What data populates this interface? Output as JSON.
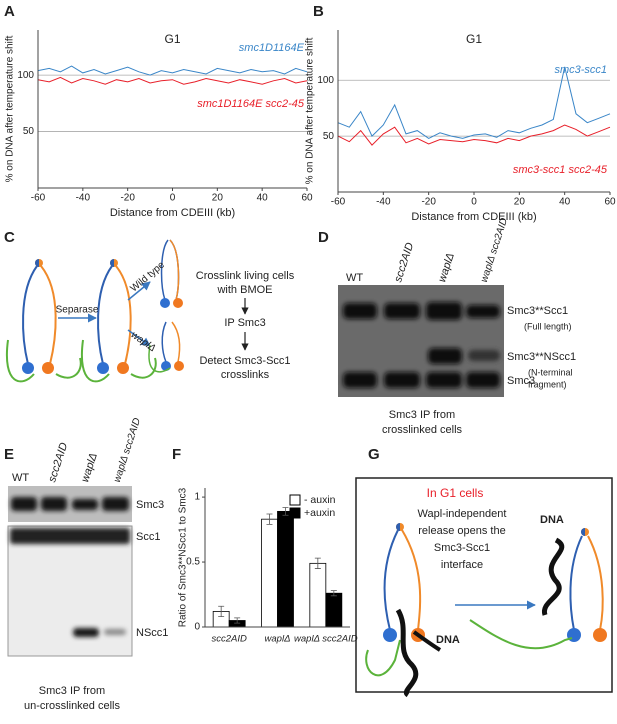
{
  "panel_labels": [
    "A",
    "B",
    "C",
    "D",
    "E",
    "F",
    "G"
  ],
  "chart_data": [
    {
      "type": "line",
      "title": "G1",
      "xlabel": "Distance from CDEIII (kb)",
      "ylabel": "% on DNA after temperature shift",
      "x": [
        -60,
        -55,
        -50,
        -45,
        -40,
        -35,
        -30,
        -25,
        -20,
        -15,
        -10,
        -5,
        0,
        5,
        10,
        15,
        20,
        25,
        30,
        35,
        40,
        45,
        50,
        55,
        60
      ],
      "series": [
        {
          "name": "smc1D1164E",
          "color": "#3a86c8",
          "values": [
            104,
            106,
            103,
            108,
            102,
            105,
            101,
            104,
            107,
            103,
            100,
            104,
            102,
            105,
            103,
            101,
            106,
            104,
            102,
            105,
            103,
            104,
            101,
            106,
            103
          ]
        },
        {
          "name": "smc1D1164E scc2-45",
          "color": "#e8202a",
          "values": [
            96,
            94,
            98,
            93,
            97,
            95,
            92,
            96,
            94,
            97,
            93,
            95,
            96,
            92,
            94,
            97,
            95,
            93,
            96,
            94,
            92,
            95,
            97,
            93,
            95
          ]
        }
      ],
      "xlim": [
        -60,
        60
      ],
      "xticks": [
        -60,
        -40,
        -20,
        0,
        20,
        40,
        60
      ],
      "ylim": [
        0,
        140
      ],
      "yticks": [
        50,
        100
      ],
      "grid": true
    },
    {
      "type": "line",
      "title": "G1",
      "xlabel": "Distance from CDEIII (kb)",
      "ylabel": "% on DNA after temperature shift",
      "x": [
        -60,
        -55,
        -50,
        -45,
        -40,
        -35,
        -30,
        -25,
        -20,
        -15,
        -10,
        -5,
        0,
        5,
        10,
        15,
        20,
        25,
        30,
        35,
        40,
        45,
        50,
        55,
        60
      ],
      "series": [
        {
          "name": "smc3-scc1",
          "color": "#3a86c8",
          "values": [
            62,
            58,
            72,
            50,
            60,
            78,
            52,
            55,
            48,
            53,
            50,
            48,
            51,
            52,
            49,
            55,
            53,
            57,
            60,
            65,
            112,
            70,
            62,
            66,
            70
          ]
        },
        {
          "name": "smc3-scc1 scc2-45",
          "color": "#e8202a",
          "values": [
            50,
            45,
            55,
            42,
            52,
            58,
            44,
            48,
            43,
            47,
            46,
            45,
            47,
            46,
            44,
            48,
            46,
            50,
            52,
            55,
            60,
            56,
            50,
            54,
            58
          ]
        }
      ],
      "xlim": [
        -60,
        60
      ],
      "xticks": [
        -60,
        -40,
        -20,
        0,
        20,
        40,
        60
      ],
      "ylim": [
        0,
        145
      ],
      "yticks": [
        50,
        100
      ],
      "grid": true
    },
    {
      "type": "bar",
      "ylabel": "Ratio of Smc3**NScc1 to Smc3",
      "categories": [
        "scc2AID",
        "waplΔ",
        "waplΔ scc2AID"
      ],
      "series": [
        {
          "name": "- auxin",
          "color": "#ffffff",
          "values": [
            0.12,
            0.83,
            0.49
          ],
          "errors": [
            0.04,
            0.04,
            0.04
          ]
        },
        {
          "name": "+auxin",
          "color": "#000000",
          "values": [
            0.05,
            0.89,
            0.26
          ],
          "errors": [
            0.02,
            0.03,
            0.02
          ]
        }
      ],
      "ylim": [
        0,
        1.07
      ],
      "yticks": [
        0,
        0.5,
        1
      ]
    }
  ],
  "panel_c": {
    "separase": "Separase",
    "wild_type": "Wild type",
    "wapl": "waplΔ",
    "crosslink": [
      "Crosslink living cells",
      "with BMOE"
    ],
    "ip": "IP Smc3",
    "detect": [
      "Detect Smc3-Scc1",
      "crosslinks"
    ]
  },
  "panel_d": {
    "lanes": [
      "WT",
      "scc2AID",
      "waplΔ",
      "waplΔ scc2AID"
    ],
    "bands": [
      "Smc3**Scc1",
      "(Full length)",
      "Smc3**NScc1",
      "(N-terminal",
      "fragment)",
      "Smc3"
    ],
    "caption": [
      "Smc3 IP from",
      "crosslinked cells"
    ]
  },
  "panel_e": {
    "lanes": [
      "WT",
      "scc2AID",
      "waplΔ",
      "waplΔ scc2AID"
    ],
    "bands": [
      "Smc3",
      "Scc1",
      "NScc1"
    ],
    "caption": [
      "Smc3 IP from",
      "un-crosslinked cells"
    ]
  },
  "panel_g": {
    "title": "In G1 cells",
    "text": [
      "Wapl-independent",
      "release opens the",
      "Smc3-Scc1",
      "interface"
    ],
    "dna": [
      "DNA",
      "DNA"
    ]
  }
}
